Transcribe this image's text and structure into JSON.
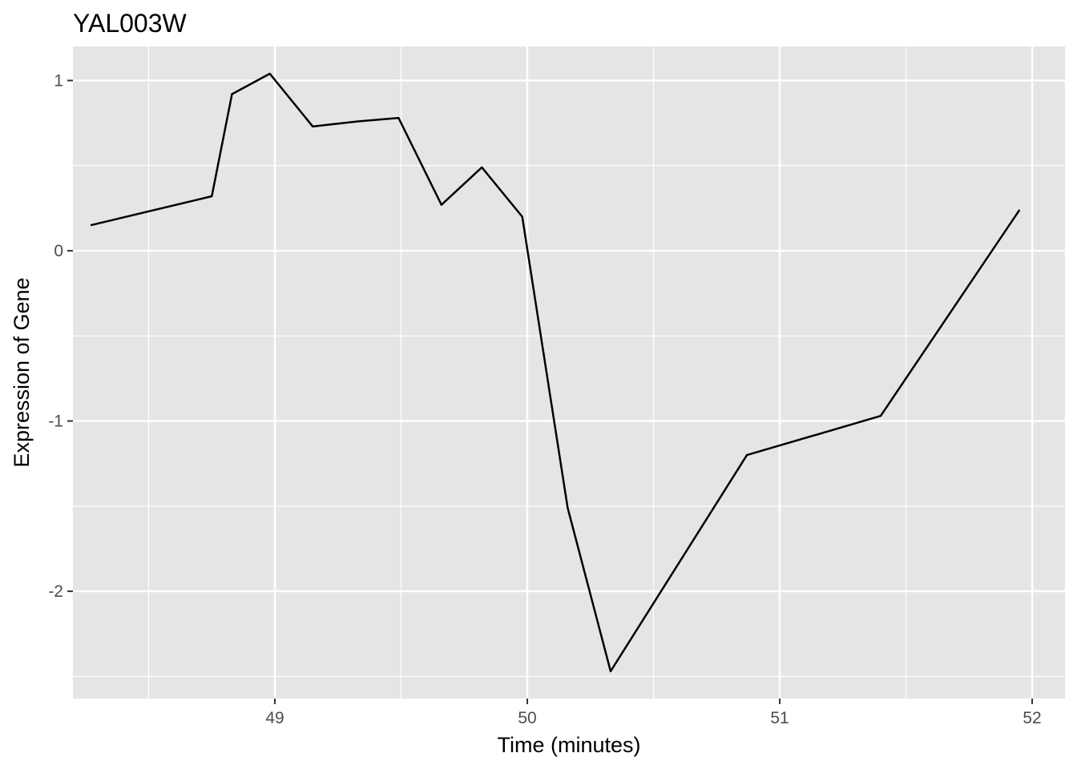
{
  "chart_data": {
    "type": "line",
    "title": "YAL003W",
    "xlabel": "Time (minutes)",
    "ylabel": "Expression of Gene",
    "xlim": [
      48.2,
      52.13
    ],
    "ylim": [
      -2.63,
      1.2
    ],
    "x_ticks": [
      49,
      50,
      51,
      52
    ],
    "x_tick_labels": [
      "49",
      "50",
      "51",
      "52"
    ],
    "x_minor": [
      48.5,
      49.5,
      50.5,
      51.5
    ],
    "y_ticks": [
      -2,
      -1,
      0,
      1
    ],
    "y_tick_labels": [
      "-2",
      "-1",
      "0",
      "1"
    ],
    "y_minor": [
      -2.5,
      -1.5,
      -0.5,
      0.5
    ],
    "grid": true,
    "background": "#e5e5e5",
    "line_color": "#000000",
    "series": [
      {
        "x": [
          48.27,
          48.75,
          48.83,
          48.98,
          49.15,
          49.33,
          49.49,
          49.66,
          49.82,
          49.98,
          50.16,
          50.33,
          50.87,
          51.4,
          51.95
        ],
        "y": [
          0.15,
          0.32,
          0.92,
          1.04,
          0.73,
          0.76,
          0.78,
          0.27,
          0.49,
          0.2,
          -1.51,
          -2.47,
          -1.2,
          -0.97,
          0.24
        ]
      }
    ]
  }
}
